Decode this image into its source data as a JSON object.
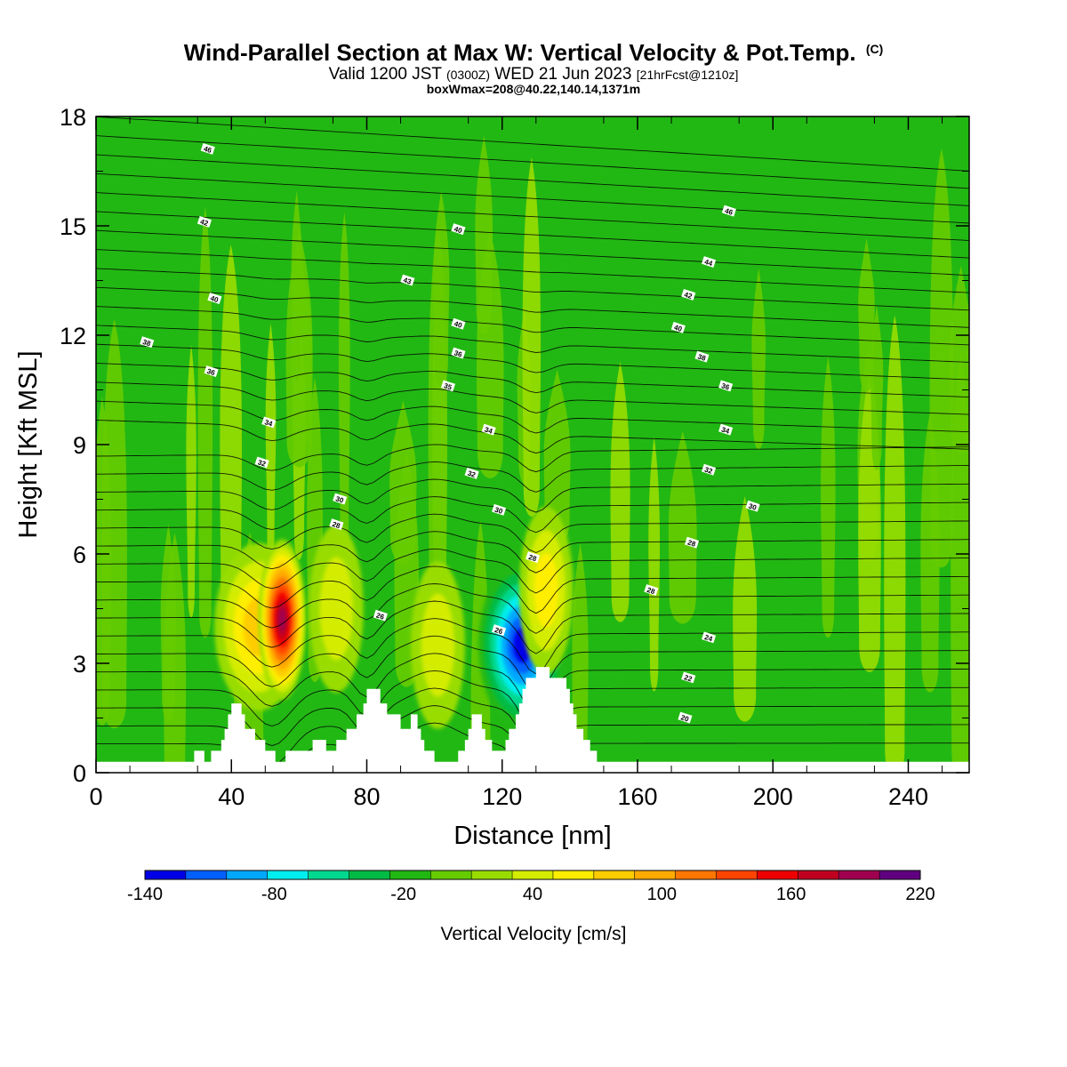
{
  "header": {
    "title": "Wind-Parallel Section at Max W: Vertical Velocity & Pot.Temp.",
    "copyright": "(C)",
    "valid_prefix": "Valid 1200 JST",
    "valid_utc": "(0300Z)",
    "valid_date": "WED 21 Jun 2023",
    "forecast": "[21hrFcst@1210z]",
    "box_info": "boxWmax=208@40.22,140.14,1371m"
  },
  "chart_data": {
    "type": "heatmap",
    "xlabel": "Distance [nm]",
    "ylabel": "Height [Kft MSL]",
    "xlim": [
      0,
      258
    ],
    "ylim": [
      0,
      18
    ],
    "x_ticks": [
      0,
      40,
      80,
      120,
      160,
      200,
      240
    ],
    "y_ticks": [
      0,
      3,
      6,
      9,
      12,
      15,
      18
    ],
    "colorbar": {
      "title": "Vertical Velocity [cm/s]",
      "min": -140,
      "max": 220,
      "step": 20,
      "labels": [
        -140,
        -80,
        -20,
        40,
        100,
        160,
        220
      ],
      "colors": [
        "#0000e6",
        "#0060ff",
        "#00a8ff",
        "#00eeee",
        "#00d890",
        "#00bb44",
        "#22b814",
        "#66cc00",
        "#99dd00",
        "#d4ec00",
        "#ffee00",
        "#ffcc00",
        "#ffaa00",
        "#ff7700",
        "#ff4400",
        "#ee0000",
        "#c00020",
        "#a00050",
        "#600080"
      ]
    },
    "background_w_color": "#22b814",
    "terrain": [
      [
        0,
        0.3
      ],
      [
        28,
        0.3
      ],
      [
        29,
        0.6
      ],
      [
        31,
        0.6
      ],
      [
        32,
        0.3
      ],
      [
        33,
        0.3
      ],
      [
        34,
        0.6
      ],
      [
        36,
        0.6
      ],
      [
        37,
        0.9
      ],
      [
        38,
        1.2
      ],
      [
        39,
        1.6
      ],
      [
        40,
        1.9
      ],
      [
        42,
        1.9
      ],
      [
        43,
        1.6
      ],
      [
        44,
        1.2
      ],
      [
        46,
        1.2
      ],
      [
        47,
        0.9
      ],
      [
        49,
        0.9
      ],
      [
        50,
        0.6
      ],
      [
        52,
        0.6
      ],
      [
        53,
        0.3
      ],
      [
        55,
        0.3
      ],
      [
        56,
        0.6
      ],
      [
        63,
        0.6
      ],
      [
        64,
        0.9
      ],
      [
        67,
        0.9
      ],
      [
        68,
        0.6
      ],
      [
        70,
        0.6
      ],
      [
        71,
        0.9
      ],
      [
        73,
        0.9
      ],
      [
        74,
        1.2
      ],
      [
        76,
        1.2
      ],
      [
        77,
        1.6
      ],
      [
        79,
        1.9
      ],
      [
        80,
        2.3
      ],
      [
        83,
        2.3
      ],
      [
        84,
        1.9
      ],
      [
        86,
        1.6
      ],
      [
        89,
        1.6
      ],
      [
        90,
        1.2
      ],
      [
        92,
        1.2
      ],
      [
        93,
        1.6
      ],
      [
        94,
        1.6
      ],
      [
        95,
        1.2
      ],
      [
        96,
        0.9
      ],
      [
        97,
        0.6
      ],
      [
        99,
        0.6
      ],
      [
        100,
        0.3
      ],
      [
        106,
        0.3
      ],
      [
        107,
        0.6
      ],
      [
        109,
        0.9
      ],
      [
        110,
        1.2
      ],
      [
        111,
        1.6
      ],
      [
        113,
        1.6
      ],
      [
        114,
        1.2
      ],
      [
        115,
        0.9
      ],
      [
        116,
        0.9
      ],
      [
        117,
        0.6
      ],
      [
        120,
        0.6
      ],
      [
        121,
        0.9
      ],
      [
        122,
        1.2
      ],
      [
        123,
        1.2
      ],
      [
        124,
        1.6
      ],
      [
        125,
        1.9
      ],
      [
        126,
        2.3
      ],
      [
        127,
        2.6
      ],
      [
        129,
        2.6
      ],
      [
        130,
        2.9
      ],
      [
        133,
        2.9
      ],
      [
        134,
        2.6
      ],
      [
        138,
        2.6
      ],
      [
        139,
        2.3
      ],
      [
        140,
        1.9
      ],
      [
        141,
        1.6
      ],
      [
        142,
        1.2
      ],
      [
        144,
        0.9
      ],
      [
        146,
        0.6
      ],
      [
        148,
        0.3
      ],
      [
        258,
        0.3
      ]
    ],
    "w_features": [
      {
        "x": 48,
        "z": 4.0,
        "w": 90
      },
      {
        "x": 55,
        "z": 4.2,
        "w": 208
      },
      {
        "x": 71,
        "z": 4.5,
        "w": 45
      },
      {
        "x": 101,
        "z": 3.5,
        "w": 55
      },
      {
        "x": 126,
        "z": 3.5,
        "w": -140
      },
      {
        "x": 133,
        "z": 5.0,
        "w": 70
      }
    ],
    "theta_contours": {
      "units": "C",
      "label_values": [
        20,
        22,
        24,
        26,
        28,
        30,
        32,
        34,
        36,
        38,
        40,
        42,
        44,
        46
      ],
      "labels": [
        {
          "x": 33,
          "z": 17.1,
          "text": "46"
        },
        {
          "x": 32,
          "z": 15.1,
          "text": "42"
        },
        {
          "x": 107,
          "z": 14.9,
          "text": "40"
        },
        {
          "x": 187,
          "z": 15.4,
          "text": "46"
        },
        {
          "x": 181,
          "z": 14.0,
          "text": "44"
        },
        {
          "x": 92,
          "z": 13.5,
          "text": "43"
        },
        {
          "x": 35,
          "z": 13.0,
          "text": "40"
        },
        {
          "x": 175,
          "z": 13.1,
          "text": "42"
        },
        {
          "x": 107,
          "z": 12.3,
          "text": "40"
        },
        {
          "x": 172,
          "z": 12.2,
          "text": "40"
        },
        {
          "x": 15,
          "z": 11.8,
          "text": "38"
        },
        {
          "x": 107,
          "z": 11.5,
          "text": "36"
        },
        {
          "x": 179,
          "z": 11.4,
          "text": "38"
        },
        {
          "x": 34,
          "z": 11.0,
          "text": "36"
        },
        {
          "x": 104,
          "z": 10.6,
          "text": "35"
        },
        {
          "x": 186,
          "z": 10.6,
          "text": "36"
        },
        {
          "x": 51,
          "z": 9.6,
          "text": "34"
        },
        {
          "x": 116,
          "z": 9.4,
          "text": "34"
        },
        {
          "x": 186,
          "z": 9.4,
          "text": "34"
        },
        {
          "x": 49,
          "z": 8.5,
          "text": "32"
        },
        {
          "x": 111,
          "z": 8.2,
          "text": "32"
        },
        {
          "x": 181,
          "z": 8.3,
          "text": "32"
        },
        {
          "x": 72,
          "z": 7.5,
          "text": "30"
        },
        {
          "x": 119,
          "z": 7.2,
          "text": "30"
        },
        {
          "x": 194,
          "z": 7.3,
          "text": "30"
        },
        {
          "x": 71,
          "z": 6.8,
          "text": "28"
        },
        {
          "x": 176,
          "z": 6.3,
          "text": "28"
        },
        {
          "x": 129,
          "z": 5.9,
          "text": "28"
        },
        {
          "x": 164,
          "z": 5.0,
          "text": "28"
        },
        {
          "x": 84,
          "z": 4.3,
          "text": "26"
        },
        {
          "x": 119,
          "z": 3.9,
          "text": "26"
        },
        {
          "x": 181,
          "z": 3.7,
          "text": "24"
        },
        {
          "x": 175,
          "z": 2.6,
          "text": "22"
        },
        {
          "x": 174,
          "z": 1.5,
          "text": "20"
        }
      ]
    }
  }
}
